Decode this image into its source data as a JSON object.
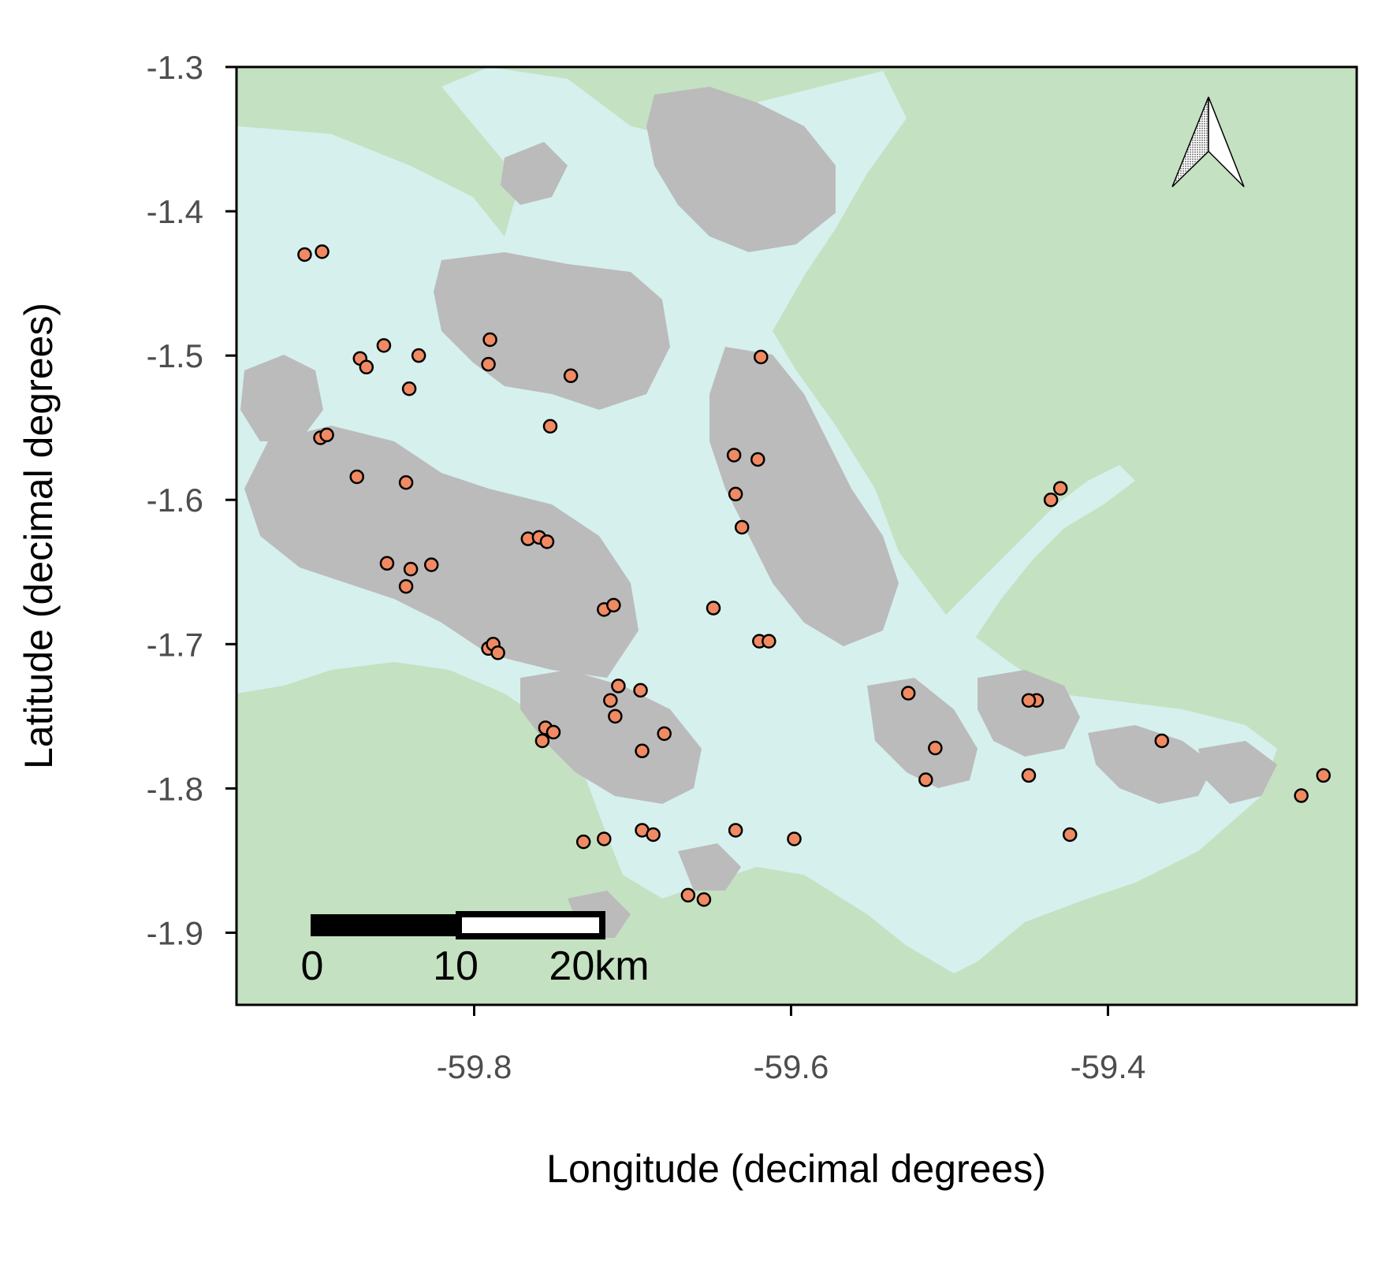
{
  "chart_data": {
    "type": "scatter",
    "subtype": "map",
    "title": "",
    "xlabel": "Longitude (decimal degrees)",
    "ylabel": "Latitude (decimal degrees)",
    "xlim": [
      -59.95,
      -59.243
    ],
    "ylim": [
      -1.95,
      -1.3
    ],
    "x_ticks": [
      -59.8,
      -59.6,
      -59.4
    ],
    "x_tick_labels": [
      "-59.8",
      "-59.6",
      "-59.4"
    ],
    "y_ticks": [
      -1.3,
      -1.4,
      -1.5,
      -1.6,
      -1.7,
      -1.8,
      -1.9
    ],
    "y_tick_labels": [
      "-1.3",
      "-1.4",
      "-1.5",
      "-1.6",
      "-1.7",
      "-1.8",
      "-1.9"
    ],
    "grid": false,
    "legend": "none",
    "colors": {
      "land": "#c4e1c2",
      "water": "#d6f0ee",
      "islands": "#bbbbbb",
      "point_fill": "#f08a62",
      "point_stroke": "#000000"
    },
    "scale_bar": {
      "labels": [
        "0",
        "10",
        "20km"
      ]
    },
    "north_arrow": true,
    "series": [
      {
        "x": [
          -59.907,
          -59.896,
          -59.872,
          -59.868,
          -59.857,
          -59.835,
          -59.79,
          -59.791,
          -59.739,
          -59.841,
          -59.897,
          -59.893,
          -59.874,
          -59.843,
          -59.752,
          -59.619,
          -59.636,
          -59.621,
          -59.635,
          -59.631,
          -59.766,
          -59.759,
          -59.754,
          -59.855,
          -59.84,
          -59.827,
          -59.843,
          -59.718,
          -59.712,
          -59.649,
          -59.791,
          -59.788,
          -59.785,
          -59.62,
          -59.614,
          -59.709,
          -59.714,
          -59.695,
          -59.711,
          -59.755,
          -59.75,
          -59.757,
          -59.68,
          -59.694,
          -59.731,
          -59.718,
          -59.694,
          -59.687,
          -59.635,
          -59.598,
          -59.665,
          -59.655,
          -59.526,
          -59.509,
          -59.515,
          -59.45,
          -59.445,
          -59.45,
          -59.436,
          -59.43,
          -59.424,
          -59.366,
          -59.278,
          -59.264
        ],
        "y": [
          -1.43,
          -1.428,
          -1.502,
          -1.508,
          -1.493,
          -1.5,
          -1.489,
          -1.506,
          -1.514,
          -1.523,
          -1.557,
          -1.555,
          -1.584,
          -1.588,
          -1.549,
          -1.501,
          -1.569,
          -1.572,
          -1.596,
          -1.619,
          -1.627,
          -1.626,
          -1.629,
          -1.644,
          -1.648,
          -1.645,
          -1.66,
          -1.676,
          -1.673,
          -1.675,
          -1.703,
          -1.7,
          -1.706,
          -1.698,
          -1.698,
          -1.729,
          -1.739,
          -1.732,
          -1.75,
          -1.758,
          -1.761,
          -1.767,
          -1.762,
          -1.774,
          -1.837,
          -1.835,
          -1.829,
          -1.832,
          -1.829,
          -1.835,
          -1.874,
          -1.877,
          -1.734,
          -1.772,
          -1.794,
          -1.791,
          -1.739,
          -1.739,
          -1.6,
          -1.592,
          -1.832,
          -1.767,
          -1.805,
          -1.791
        ]
      }
    ]
  }
}
